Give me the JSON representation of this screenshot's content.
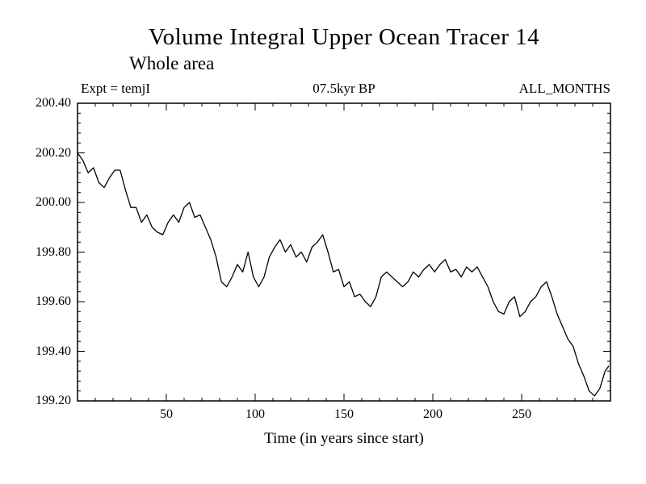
{
  "annotations": {
    "left": "Expt = temjI",
    "center": "07.5kyr BP",
    "right": "ALL_MONTHS"
  },
  "chart_data": {
    "type": "line",
    "title": "Volume Integral Upper Ocean Tracer 14",
    "subtitle": "Whole area",
    "xlabel": "Time (in years since start)",
    "ylabel": "",
    "xlim": [
      0,
      300
    ],
    "ylim": [
      199.2,
      200.4
    ],
    "xticks": [
      50,
      100,
      150,
      200,
      250
    ],
    "yticks": [
      200.4,
      200.2,
      200.0,
      199.8,
      199.6,
      199.4,
      199.2
    ],
    "ytick_labels": [
      "200.40",
      "200.20",
      "200.00",
      "199.80",
      "199.60",
      "199.40",
      "199.20"
    ],
    "minor_x_step": 10,
    "minor_y_step": 0.04,
    "grid": false,
    "line_color": "#000000",
    "frame_color": "#000000",
    "series": [
      {
        "name": "tracer14",
        "x": [
          0,
          3,
          6,
          9,
          12,
          15,
          18,
          21,
          24,
          27,
          30,
          33,
          36,
          39,
          42,
          45,
          48,
          51,
          54,
          57,
          60,
          63,
          66,
          69,
          72,
          75,
          78,
          81,
          84,
          87,
          90,
          93,
          96,
          99,
          102,
          105,
          108,
          111,
          114,
          117,
          120,
          123,
          126,
          129,
          132,
          135,
          138,
          141,
          144,
          147,
          150,
          153,
          156,
          159,
          162,
          165,
          168,
          171,
          174,
          177,
          180,
          183,
          186,
          189,
          192,
          195,
          198,
          201,
          204,
          207,
          210,
          213,
          216,
          219,
          222,
          225,
          228,
          231,
          234,
          237,
          240,
          243,
          246,
          249,
          252,
          255,
          258,
          261,
          264,
          267,
          270,
          273,
          276,
          279,
          282,
          285,
          288,
          291,
          294,
          297,
          299
        ],
        "y": [
          200.2,
          200.17,
          200.12,
          200.14,
          200.08,
          200.06,
          200.1,
          200.13,
          200.13,
          200.05,
          199.98,
          199.98,
          199.92,
          199.95,
          199.9,
          199.88,
          199.87,
          199.92,
          199.95,
          199.92,
          199.98,
          200.0,
          199.94,
          199.95,
          199.9,
          199.85,
          199.78,
          199.68,
          199.66,
          199.7,
          199.75,
          199.72,
          199.8,
          199.7,
          199.66,
          199.7,
          199.78,
          199.82,
          199.85,
          199.8,
          199.83,
          199.78,
          199.8,
          199.76,
          199.82,
          199.84,
          199.87,
          199.8,
          199.72,
          199.73,
          199.66,
          199.68,
          199.62,
          199.63,
          199.6,
          199.58,
          199.62,
          199.7,
          199.72,
          199.7,
          199.68,
          199.66,
          199.68,
          199.72,
          199.7,
          199.73,
          199.75,
          199.72,
          199.75,
          199.77,
          199.72,
          199.73,
          199.7,
          199.74,
          199.72,
          199.74,
          199.7,
          199.66,
          199.6,
          199.56,
          199.55,
          199.6,
          199.62,
          199.54,
          199.56,
          199.6,
          199.62,
          199.66,
          199.68,
          199.62,
          199.55,
          199.5,
          199.45,
          199.42,
          199.35,
          199.3,
          199.24,
          199.22,
          199.25,
          199.32,
          199.34
        ]
      }
    ]
  }
}
